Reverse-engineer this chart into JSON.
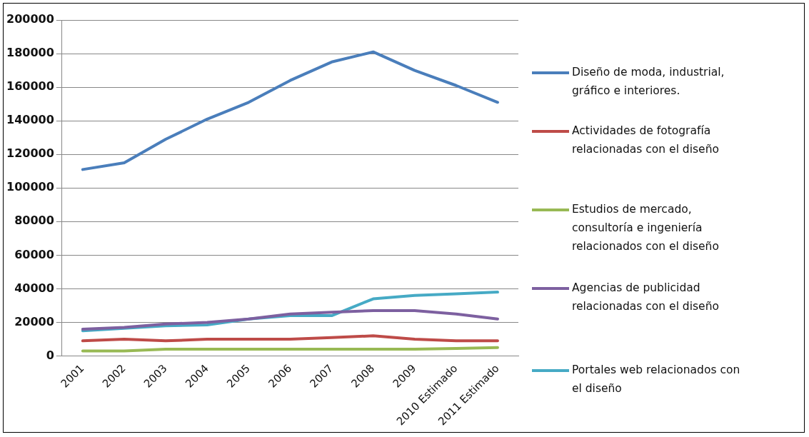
{
  "chart_data": {
    "type": "line",
    "categories": [
      "2001",
      "2002",
      "2003",
      "2004",
      "2005",
      "2006",
      "2007",
      "2008",
      "2009",
      "2010 Estimado",
      "2011 Estimado"
    ],
    "series": [
      {
        "name": "Diseño de moda, industrial, gráfico e interiores.",
        "color": "#4a7ebb",
        "values": [
          111000,
          115000,
          129000,
          141000,
          151000,
          164000,
          175000,
          181000,
          170000,
          161000,
          151000
        ]
      },
      {
        "name": "Actividades de fotografía relacionadas con el diseño",
        "color": "#be4b48",
        "values": [
          9000,
          10000,
          9000,
          10000,
          10000,
          10000,
          11000,
          12000,
          10000,
          9000,
          9000
        ]
      },
      {
        "name": "Estudios de mercado, consultoría e ingeniería relacionados con el diseño",
        "color": "#98b954",
        "values": [
          3000,
          3000,
          4000,
          4000,
          4000,
          4000,
          4000,
          4000,
          4000,
          4500,
          5000
        ]
      },
      {
        "name": "Agencias de publicidad relacionadas con el diseño",
        "color": "#7d60a0",
        "values": [
          16000,
          17000,
          19000,
          20000,
          22000,
          25000,
          26000,
          27000,
          27000,
          25000,
          22000
        ]
      },
      {
        "name": "Portales web relacionados con el diseño",
        "color": "#46aac5",
        "values": [
          15000,
          16500,
          18000,
          18500,
          22000,
          24000,
          24000,
          34000,
          36000,
          37000,
          38000
        ]
      }
    ],
    "ylim": [
      0,
      200000
    ],
    "yticks": [
      0,
      20000,
      40000,
      60000,
      80000,
      100000,
      120000,
      140000,
      160000,
      180000,
      200000
    ],
    "grid": "y",
    "legend": "right",
    "marker": "none",
    "line_style": "solid"
  }
}
